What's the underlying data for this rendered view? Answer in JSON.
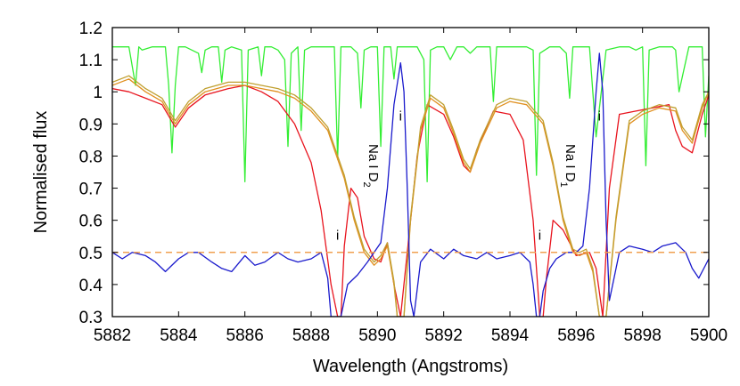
{
  "chart_data": {
    "type": "line",
    "title": "",
    "xlabel": "Wavelength (Angstroms)",
    "ylabel": "Normalised flux",
    "xlim": [
      5882,
      5900
    ],
    "ylim": [
      0.3,
      1.2
    ],
    "xticks": [
      "5882",
      "5884",
      "5886",
      "5888",
      "5890",
      "5892",
      "5894",
      "5896",
      "5898",
      "5900"
    ],
    "yticks": [
      "0.3",
      "0.4",
      "0.5",
      "0.6",
      "0.7",
      "0.8",
      "0.9",
      "1",
      "1.1",
      "1.2"
    ],
    "grid": false,
    "legend": "none",
    "colors": {
      "telluric": "#33ee33",
      "red": "#e8141e",
      "orange1": "#e09020",
      "orange2": "#c0a030",
      "blue": "#1a1acc",
      "reference": "#f0a050"
    },
    "reference_line": {
      "y": 0.5,
      "style": "dashed"
    },
    "annotations": [
      {
        "text": "Na I D",
        "sub": "2",
        "x": 5889.75,
        "y": 0.77,
        "rotate": true
      },
      {
        "text": "Na I D",
        "sub": "1",
        "x": 5895.7,
        "y": 0.77,
        "rotate": true
      },
      {
        "text": "i",
        "x": 5888.8,
        "y": 0.54
      },
      {
        "text": "i",
        "x": 5890.7,
        "y": 0.91
      },
      {
        "text": "i",
        "x": 5894.9,
        "y": 0.54
      },
      {
        "text": "i",
        "x": 5896.7,
        "y": 0.91
      }
    ],
    "series": [
      {
        "key": "telluric",
        "x": [
          5882.0,
          5882.5,
          5882.7,
          5882.8,
          5882.9,
          5883.2,
          5883.6,
          5883.7,
          5883.8,
          5883.9,
          5884.0,
          5884.2,
          5884.6,
          5884.7,
          5884.8,
          5885.0,
          5885.2,
          5885.3,
          5885.4,
          5885.6,
          5885.9,
          5886.0,
          5886.1,
          5886.4,
          5886.5,
          5886.6,
          5886.8,
          5887.0,
          5887.2,
          5887.3,
          5887.4,
          5887.6,
          5887.7,
          5887.8,
          5888.0,
          5888.2,
          5888.4,
          5888.7,
          5888.8,
          5888.9,
          5889.2,
          5889.4,
          5889.5,
          5889.6,
          5889.8,
          5890.0,
          5890.1,
          5890.2,
          5890.4,
          5890.5,
          5890.6,
          5890.8,
          5891.0,
          5891.2,
          5891.4,
          5891.5,
          5891.6,
          5891.8,
          5892.0,
          5892.2,
          5892.4,
          5892.6,
          5892.8,
          5893.0,
          5893.2,
          5893.4,
          5893.5,
          5893.6,
          5893.9,
          5894.2,
          5894.5,
          5894.7,
          5894.8,
          5894.9,
          5895.2,
          5895.5,
          5895.7,
          5895.8,
          5895.9,
          5896.1,
          5896.4,
          5896.6,
          5896.9,
          5897.3,
          5897.6,
          5897.8,
          5898.0,
          5898.1,
          5898.2,
          5898.5,
          5898.9,
          5899.0,
          5899.1,
          5899.4,
          5899.8,
          5899.9,
          5900.0
        ],
        "y": [
          1.14,
          1.14,
          1.02,
          1.14,
          1.13,
          1.14,
          1.14,
          1.02,
          0.81,
          1.02,
          1.14,
          1.14,
          1.12,
          1.06,
          1.13,
          1.14,
          1.14,
          1.03,
          1.13,
          1.14,
          1.13,
          0.72,
          1.13,
          1.14,
          1.05,
          1.14,
          1.14,
          1.13,
          1.1,
          0.83,
          1.12,
          1.14,
          0.88,
          1.13,
          1.14,
          1.14,
          1.14,
          1.14,
          0.79,
          1.14,
          1.14,
          1.12,
          0.95,
          1.13,
          1.14,
          1.14,
          0.83,
          1.14,
          1.14,
          1.04,
          1.14,
          1.14,
          1.14,
          1.14,
          1.1,
          0.72,
          1.13,
          1.14,
          1.14,
          1.1,
          1.14,
          1.14,
          1.12,
          1.14,
          1.14,
          1.14,
          0.97,
          1.14,
          1.14,
          1.14,
          1.14,
          1.13,
          0.74,
          1.12,
          1.14,
          1.14,
          1.12,
          0.98,
          1.14,
          1.14,
          1.14,
          0.86,
          1.13,
          1.14,
          1.14,
          1.13,
          1.14,
          0.77,
          1.13,
          1.14,
          1.14,
          1.13,
          1.0,
          1.14,
          1.14,
          0.86,
          1.05
        ]
      },
      {
        "key": "red",
        "x": [
          5882.0,
          5882.5,
          5883.0,
          5883.5,
          5883.9,
          5884.3,
          5884.8,
          5885.5,
          5886.0,
          5886.5,
          5887.0,
          5887.5,
          5888.0,
          5888.3,
          5888.6,
          5888.8,
          5888.9,
          5889.0,
          5889.2,
          5889.4,
          5889.6,
          5889.9,
          5890.1,
          5890.3,
          5890.5,
          5890.7,
          5890.9,
          5891.2,
          5891.5,
          5892.0,
          5892.3,
          5892.6,
          5892.8,
          5893.0,
          5893.5,
          5894.0,
          5894.4,
          5894.7,
          5894.9,
          5895.0,
          5895.1,
          5895.3,
          5895.6,
          5896.0,
          5896.4,
          5896.6,
          5896.8,
          5897.0,
          5897.3,
          5897.8,
          5898.3,
          5898.8,
          5899.0,
          5899.2,
          5899.5,
          5899.8,
          5900.0
        ],
        "y": [
          1.01,
          1.0,
          0.98,
          0.96,
          0.89,
          0.95,
          0.99,
          1.01,
          1.02,
          1.0,
          0.97,
          0.9,
          0.78,
          0.63,
          0.4,
          0.3,
          0.3,
          0.52,
          0.7,
          0.67,
          0.55,
          0.48,
          0.47,
          0.53,
          0.4,
          0.3,
          0.5,
          0.8,
          0.96,
          0.93,
          0.86,
          0.77,
          0.75,
          0.82,
          0.94,
          0.93,
          0.85,
          0.6,
          0.3,
          0.3,
          0.42,
          0.6,
          0.57,
          0.49,
          0.5,
          0.45,
          0.3,
          0.7,
          0.93,
          0.94,
          0.95,
          0.96,
          0.88,
          0.83,
          0.81,
          0.93,
          0.99
        ]
      },
      {
        "key": "orange1",
        "x": [
          5882.0,
          5882.5,
          5883.0,
          5883.5,
          5883.9,
          5884.3,
          5884.8,
          5885.5,
          5886.0,
          5886.5,
          5887.0,
          5887.5,
          5888.0,
          5888.5,
          5889.0,
          5889.3,
          5889.6,
          5889.9,
          5890.1,
          5890.3,
          5890.5,
          5890.6,
          5890.8,
          5891.0,
          5891.3,
          5891.6,
          5892.0,
          5892.3,
          5892.6,
          5892.8,
          5893.1,
          5893.6,
          5894.0,
          5894.5,
          5895.0,
          5895.3,
          5895.6,
          5895.9,
          5896.1,
          5896.3,
          5896.5,
          5896.7,
          5896.9,
          5897.2,
          5897.6,
          5898.0,
          5898.5,
          5899.0,
          5899.2,
          5899.5,
          5899.8,
          5900.0
        ],
        "y": [
          1.02,
          1.04,
          1.0,
          0.97,
          0.9,
          0.96,
          1.0,
          1.02,
          1.02,
          1.01,
          1.0,
          0.98,
          0.94,
          0.88,
          0.73,
          0.6,
          0.5,
          0.46,
          0.48,
          0.52,
          0.4,
          0.3,
          0.3,
          0.6,
          0.88,
          0.98,
          0.95,
          0.87,
          0.78,
          0.75,
          0.84,
          0.95,
          0.97,
          0.96,
          0.9,
          0.77,
          0.6,
          0.5,
          0.49,
          0.5,
          0.44,
          0.3,
          0.3,
          0.6,
          0.9,
          0.93,
          0.95,
          0.94,
          0.88,
          0.84,
          0.95,
          1.0
        ]
      },
      {
        "key": "orange2",
        "x": [
          5882.0,
          5882.5,
          5883.0,
          5883.5,
          5883.9,
          5884.3,
          5884.8,
          5885.5,
          5886.0,
          5886.5,
          5887.0,
          5887.5,
          5888.0,
          5888.5,
          5889.0,
          5889.3,
          5889.6,
          5889.9,
          5890.1,
          5890.3,
          5890.5,
          5890.6,
          5890.8,
          5891.0,
          5891.3,
          5891.6,
          5892.0,
          5892.3,
          5892.6,
          5892.8,
          5893.1,
          5893.6,
          5894.0,
          5894.5,
          5895.0,
          5895.3,
          5895.6,
          5895.9,
          5896.1,
          5896.3,
          5896.5,
          5896.7,
          5896.9,
          5897.2,
          5897.6,
          5898.0,
          5898.5,
          5899.0,
          5899.2,
          5899.5,
          5899.8,
          5900.0
        ],
        "y": [
          1.03,
          1.05,
          1.01,
          0.98,
          0.91,
          0.97,
          1.01,
          1.03,
          1.03,
          1.02,
          1.01,
          0.99,
          0.95,
          0.89,
          0.74,
          0.61,
          0.51,
          0.47,
          0.49,
          0.53,
          0.41,
          0.3,
          0.3,
          0.61,
          0.89,
          0.99,
          0.96,
          0.88,
          0.79,
          0.76,
          0.85,
          0.96,
          0.98,
          0.97,
          0.91,
          0.78,
          0.61,
          0.51,
          0.5,
          0.51,
          0.45,
          0.3,
          0.3,
          0.61,
          0.91,
          0.94,
          0.96,
          0.95,
          0.89,
          0.85,
          0.96,
          1.0
        ]
      },
      {
        "key": "blue",
        "x": [
          5882.0,
          5882.3,
          5882.6,
          5883.0,
          5883.3,
          5883.6,
          5884.0,
          5884.3,
          5884.6,
          5885.0,
          5885.3,
          5885.6,
          5886.0,
          5886.3,
          5886.6,
          5887.0,
          5887.3,
          5887.6,
          5888.0,
          5888.3,
          5888.5,
          5888.6,
          5888.7,
          5888.8,
          5888.9,
          5889.1,
          5889.4,
          5889.7,
          5889.9,
          5890.1,
          5890.3,
          5890.5,
          5890.7,
          5890.8,
          5890.9,
          5891.0,
          5891.1,
          5891.3,
          5891.6,
          5892.0,
          5892.3,
          5892.6,
          5893.0,
          5893.3,
          5893.6,
          5894.0,
          5894.3,
          5894.6,
          5894.7,
          5894.8,
          5894.9,
          5895.0,
          5895.2,
          5895.4,
          5895.7,
          5896.0,
          5896.2,
          5896.4,
          5896.6,
          5896.7,
          5896.8,
          5896.9,
          5897.0,
          5897.3,
          5897.6,
          5898.0,
          5898.3,
          5898.6,
          5899.0,
          5899.3,
          5899.5,
          5899.7,
          5900.0
        ],
        "y": [
          0.5,
          0.48,
          0.5,
          0.49,
          0.47,
          0.44,
          0.48,
          0.5,
          0.5,
          0.47,
          0.45,
          0.44,
          0.49,
          0.46,
          0.47,
          0.5,
          0.48,
          0.47,
          0.48,
          0.5,
          0.42,
          0.3,
          0.3,
          0.3,
          0.3,
          0.4,
          0.43,
          0.47,
          0.5,
          0.53,
          0.7,
          0.96,
          1.09,
          1.0,
          0.7,
          0.35,
          0.3,
          0.47,
          0.51,
          0.48,
          0.51,
          0.49,
          0.48,
          0.5,
          0.48,
          0.49,
          0.5,
          0.47,
          0.4,
          0.3,
          0.3,
          0.38,
          0.45,
          0.48,
          0.5,
          0.5,
          0.52,
          0.7,
          1.0,
          1.12,
          1.0,
          0.6,
          0.35,
          0.5,
          0.52,
          0.51,
          0.5,
          0.52,
          0.53,
          0.5,
          0.45,
          0.42,
          0.48
        ]
      }
    ]
  }
}
